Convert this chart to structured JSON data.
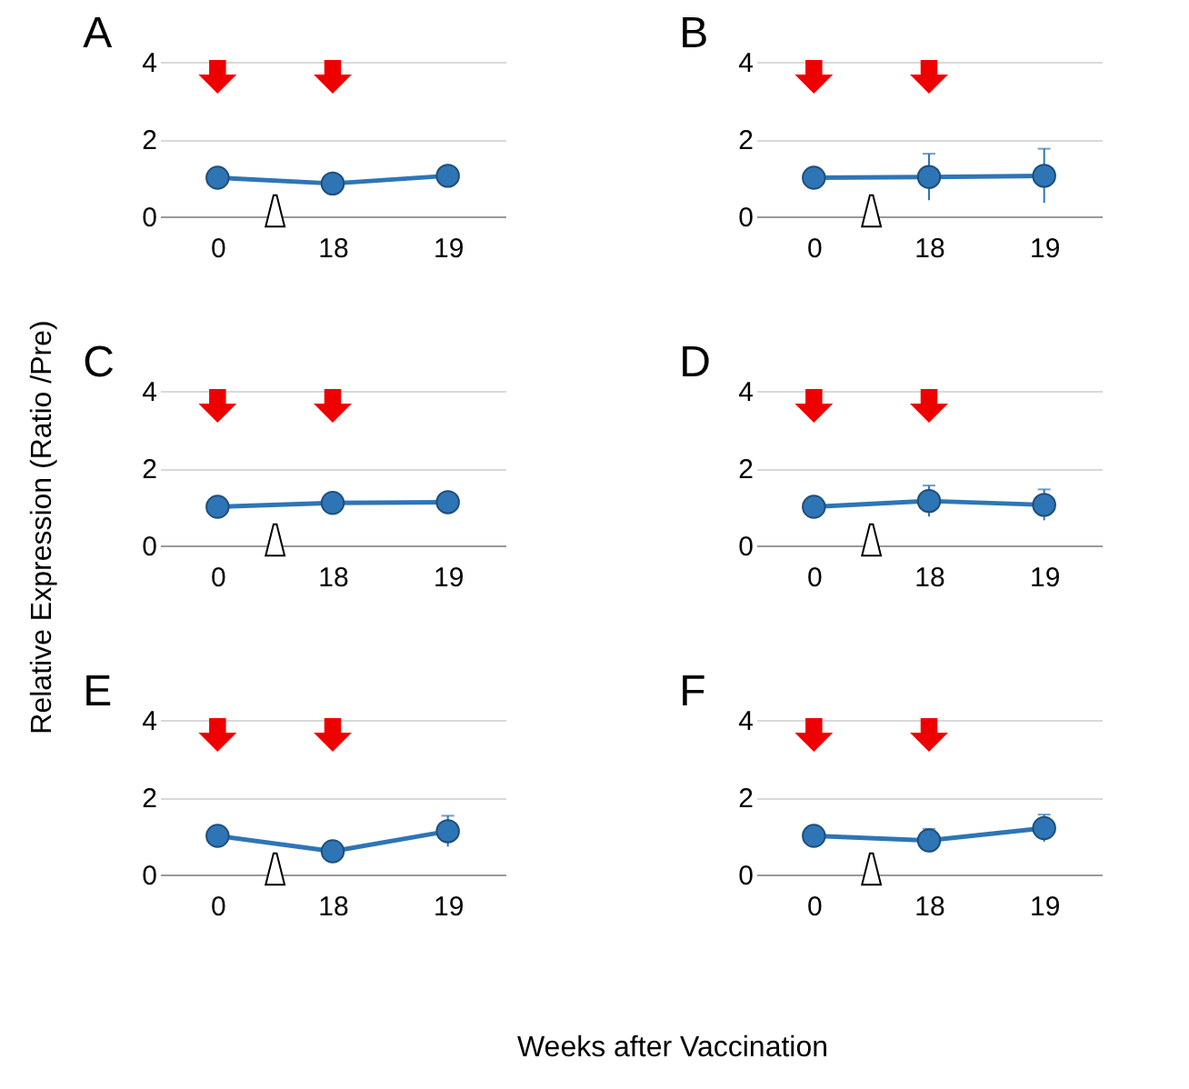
{
  "chart_data": [
    {
      "type": "line",
      "title": "A",
      "categories": [
        "0",
        "18",
        "19"
      ],
      "series": [
        {
          "color": "#2e75b6",
          "values": [
            1.0,
            0.85,
            1.05
          ]
        }
      ],
      "ylim": [
        0,
        4
      ],
      "yticks": [
        0,
        2,
        4
      ],
      "grid": "y",
      "marker": "circle"
    },
    {
      "type": "line",
      "title": "B",
      "categories": [
        "0",
        "18",
        "19"
      ],
      "series": [
        {
          "color": "#2e75b6",
          "values": [
            1.0,
            1.02,
            1.05
          ],
          "errors": [
            null,
            0.6,
            0.7
          ]
        }
      ],
      "ylim": [
        0,
        4
      ],
      "yticks": [
        0,
        2,
        4
      ],
      "grid": "y",
      "marker": "circle"
    },
    {
      "type": "line",
      "title": "C",
      "ylabel": "Relative Expression (Ratio /Pre)",
      "categories": [
        "0",
        "18",
        "19"
      ],
      "series": [
        {
          "color": "#2e75b6",
          "values": [
            1.0,
            1.1,
            1.12
          ]
        }
      ],
      "ylim": [
        0,
        4
      ],
      "yticks": [
        0,
        2,
        4
      ],
      "grid": "y",
      "marker": "circle"
    },
    {
      "type": "line",
      "title": "D",
      "categories": [
        "0",
        "18",
        "19"
      ],
      "series": [
        {
          "color": "#2e75b6",
          "values": [
            1.0,
            1.15,
            1.05
          ],
          "errors": [
            null,
            0.4,
            0.4
          ]
        }
      ],
      "ylim": [
        0,
        4
      ],
      "yticks": [
        0,
        2,
        4
      ],
      "grid": "y",
      "marker": "circle"
    },
    {
      "type": "line",
      "title": "E",
      "xlabel": "Weeks after Vaccination",
      "categories": [
        "0",
        "18",
        "19"
      ],
      "series": [
        {
          "color": "#2e75b6",
          "values": [
            1.0,
            0.6,
            1.12
          ],
          "errors": [
            null,
            null,
            0.4
          ]
        }
      ],
      "ylim": [
        0,
        4
      ],
      "yticks": [
        0,
        2,
        4
      ],
      "grid": "y",
      "marker": "circle"
    },
    {
      "type": "line",
      "title": "F",
      "categories": [
        "0",
        "18",
        "19"
      ],
      "series": [
        {
          "color": "#2e75b6",
          "values": [
            1.0,
            0.88,
            1.2
          ],
          "errors": [
            null,
            0.3,
            0.35
          ]
        }
      ],
      "ylim": [
        0,
        4
      ],
      "yticks": [
        0,
        2,
        4
      ],
      "grid": "y",
      "marker": "circle"
    }
  ]
}
